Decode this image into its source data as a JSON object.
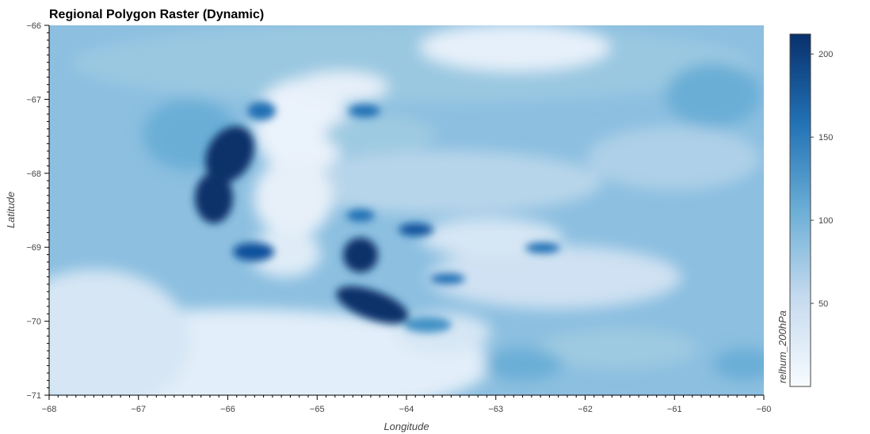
{
  "chart_data": {
    "type": "heatmap",
    "title": "Regional Polygon Raster (Dynamic)",
    "xlabel": "Longitude",
    "ylabel": "Latitude",
    "xlim": [
      -68,
      -60
    ],
    "ylim": [
      -71,
      -66
    ],
    "x_ticks": [
      "−68",
      "−67",
      "−66",
      "−65",
      "−64",
      "−63",
      "−62",
      "−61",
      "−60"
    ],
    "y_ticks": [
      "−66",
      "−67",
      "−68",
      "−69",
      "−70",
      "−71"
    ],
    "x_tick_values": [
      -68,
      -67,
      -66,
      -65,
      -64,
      -63,
      -62,
      -61,
      -60
    ],
    "y_tick_values": [
      -66,
      -67,
      -68,
      -69,
      -70,
      -71
    ],
    "colorbar": {
      "label": "relhum_200hPa",
      "range": [
        0,
        212
      ],
      "ticks": [
        "50",
        "100",
        "150",
        "200"
      ],
      "tick_values": [
        50,
        100,
        150,
        200
      ],
      "colormap": "Blues"
    },
    "features": [
      {
        "lon": -66.2,
        "lat": -67.8,
        "value": 205,
        "note": "dark band"
      },
      {
        "lon": -66.15,
        "lat": -68.3,
        "value": 210
      },
      {
        "lon": -65.8,
        "lat": -69.1,
        "value": 175
      },
      {
        "lon": -64.5,
        "lat": -69.1,
        "value": 210
      },
      {
        "lon": -64.4,
        "lat": -69.85,
        "value": 200
      },
      {
        "lon": -65.3,
        "lat": -67.9,
        "value": 20
      }
    ]
  }
}
